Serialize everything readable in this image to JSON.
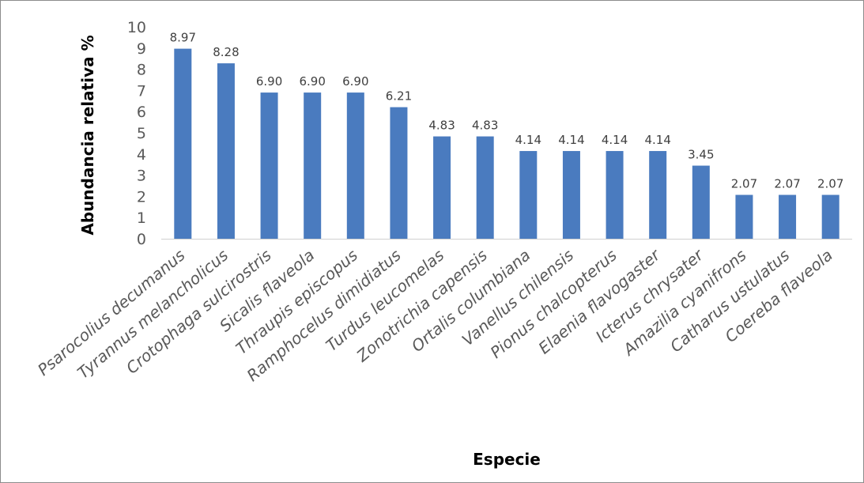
{
  "chart_data": {
    "type": "bar",
    "title": "",
    "xlabel": "Especie",
    "ylabel": "Abundancia relativa %",
    "ylim": [
      0,
      10
    ],
    "yticks": [
      0,
      1,
      2,
      3,
      4,
      5,
      6,
      7,
      8,
      9,
      10
    ],
    "grid": false,
    "legend": "none",
    "bar_color": "#4a7bbf",
    "categories": [
      "Psarocolius decumanus",
      "Tyrannus melancholicus",
      "Crotophaga sulcirostris",
      "Sicalis flaveola",
      "Thraupis episcopus",
      "Ramphocelus dimidiatus",
      "Turdus leucomelas",
      "Zonotrichia capensis",
      "Ortalis columbiana",
      "Vanellus chilensis",
      "Pionus chalcopterus",
      "Elaenia flavogaster",
      "Icterus chrysater",
      "Amazilia cyanifrons",
      "Catharus ustulatus",
      "Coereba flaveola"
    ],
    "values": [
      8.97,
      8.28,
      6.9,
      6.9,
      6.9,
      6.21,
      4.83,
      4.83,
      4.14,
      4.14,
      4.14,
      4.14,
      3.45,
      2.07,
      2.07,
      2.07
    ],
    "data_labels": [
      "8.97",
      "8.28",
      "6.90",
      "6.90",
      "6.90",
      "6.21",
      "4.83",
      "4.83",
      "4.14",
      "4.14",
      "4.14",
      "4.14",
      "3.45",
      "2.07",
      "2.07",
      "2.07"
    ]
  }
}
